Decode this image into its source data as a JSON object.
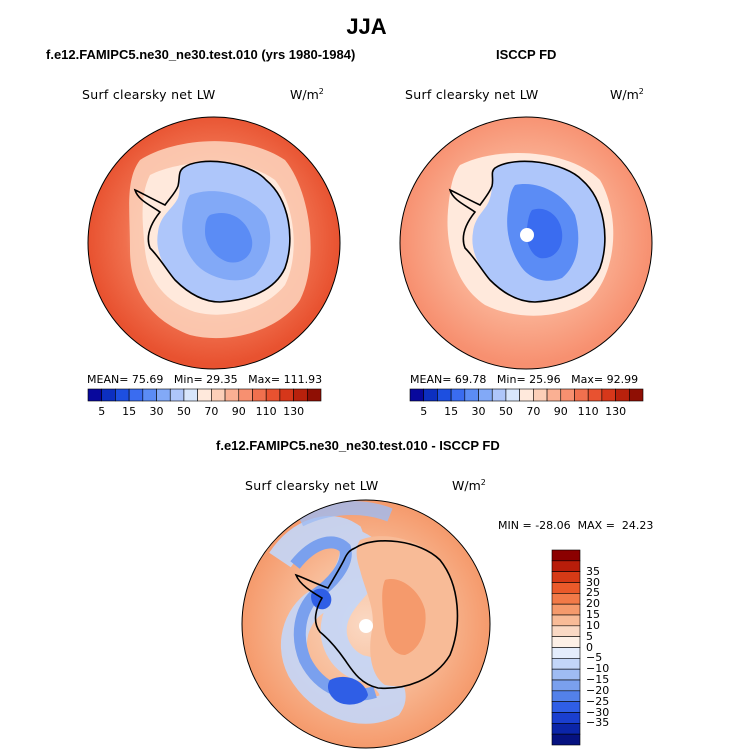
{
  "title": "JJA",
  "chart_data": [
    {
      "type": "heatmap",
      "projection": "south-polar-stereographic",
      "panel_title": "f.e12.FAMIPC5.ne30_ne30.test.010 (yrs 1980-1984)",
      "variable_label": "Surf clearsky net LW",
      "units_base": "W/m",
      "units_exp": "2",
      "stats": {
        "mean_label": "MEAN=",
        "mean": "75.69",
        "min_label": "Min=",
        "min": "29.35",
        "max_label": "Max=",
        "max": "111.93"
      },
      "colorbar_levels": [
        "5",
        "15",
        "30",
        "50",
        "70",
        "90",
        "110",
        "130"
      ],
      "colorbar_colors": [
        "#08089c",
        "#0c2fc0",
        "#1d4fe0",
        "#3a6cf0",
        "#5b8cf5",
        "#82a9f7",
        "#aec6fa",
        "#d8e6fc",
        "#ffe9dc",
        "#fccfb8",
        "#fab093",
        "#f79070",
        "#f0704e",
        "#e85230",
        "#d6371a",
        "#b8210c",
        "#8f0f04"
      ]
    },
    {
      "type": "heatmap",
      "projection": "south-polar-stereographic",
      "panel_title": "ISCCP FD",
      "variable_label": "Surf clearsky net LW",
      "units_base": "W/m",
      "units_exp": "2",
      "stats": {
        "mean_label": "MEAN=",
        "mean": "69.78",
        "min_label": "Min=",
        "min": "25.96",
        "max_label": "Max=",
        "max": "92.99"
      },
      "colorbar_levels": [
        "5",
        "15",
        "30",
        "50",
        "70",
        "90",
        "110",
        "130"
      ]
    },
    {
      "type": "heatmap",
      "projection": "south-polar-stereographic",
      "panel_title": "f.e12.FAMIPC5.ne30_ne30.test.010 - ISCCP FD",
      "variable_label": "Surf clearsky net LW",
      "units_base": "W/m",
      "units_exp": "2",
      "stats": {
        "min_label": "MIN =",
        "min": "-28.06",
        "max_label": "MAX =",
        "max": "24.23"
      },
      "colorbar_levels": [
        "35",
        "30",
        "25",
        "20",
        "15",
        "10",
        "5",
        "0",
        "−5",
        "−10",
        "−15",
        "−20",
        "−25",
        "−30",
        "−35"
      ],
      "colorbar_colors": [
        "#8b0000",
        "#b81d0a",
        "#d63a16",
        "#ea5a2a",
        "#f27a48",
        "#f59a6c",
        "#f8bb97",
        "#fad9c4",
        "#fdf0e6",
        "#e4edfc",
        "#c3d6f8",
        "#9fbcf3",
        "#7aa0ee",
        "#5381ea",
        "#2f5ee6",
        "#1a3fcf",
        "#0b25a8",
        "#061280"
      ]
    }
  ]
}
